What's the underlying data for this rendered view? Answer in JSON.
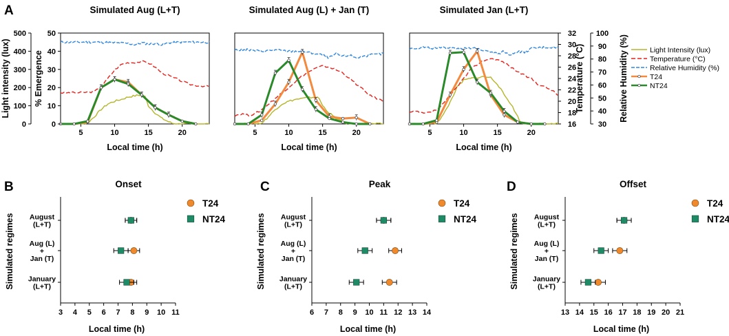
{
  "panel_letters": [
    "A",
    "B",
    "C",
    "D"
  ],
  "colors": {
    "light": "#b5b52a",
    "temperature": "#e8201a",
    "humidity": "#2e86e0",
    "t24": "#f28a40",
    "nt24": "#2a8a2a",
    "t24_marker": "#f0892c",
    "nt24_marker": "#1f8a66"
  },
  "legend_A": [
    "Light Intensity (lux)",
    "Temperature (°C)",
    "Relative Humidity (%)",
    "T24",
    "NT24"
  ],
  "legend_BCD": [
    "T24",
    "NT24"
  ],
  "chart_data": [
    {
      "type": "line",
      "title": "Simulated Aug (L+T)",
      "xlabel": "Local time (h)",
      "ylabel": "Light intensity (lux)",
      "ylabel2": "% Emergence",
      "xlim": [
        2,
        24
      ],
      "xticks": [
        5,
        10,
        15,
        20
      ],
      "ylim_light": [
        0,
        500
      ],
      "yticks_light": [
        0,
        100,
        200,
        300,
        400,
        500
      ],
      "ylim_emergence": [
        0,
        50
      ],
      "yticks_emergence": [
        0,
        10,
        20,
        30,
        40,
        50
      ],
      "series": [
        {
          "name": "Light Intensity (lux)",
          "axis": "light",
          "x": [
            2,
            5,
            6,
            7,
            8,
            9,
            10,
            11,
            12,
            13,
            14,
            14.5,
            15,
            16,
            17,
            18,
            18.5,
            19,
            24
          ],
          "y": [
            0,
            0,
            5,
            40,
            80,
            110,
            125,
            135,
            148,
            155,
            160,
            150,
            100,
            60,
            30,
            12,
            4,
            0,
            0
          ]
        },
        {
          "name": "Temperature (°C)",
          "axis": "temperature",
          "x": [
            2,
            5,
            7,
            8,
            9,
            10,
            11,
            12,
            13,
            14,
            15,
            16,
            17,
            18,
            19,
            20,
            21,
            22,
            24
          ],
          "y": [
            21.5,
            21.5,
            21.7,
            22.5,
            24,
            25.5,
            26.5,
            26.8,
            26.8,
            27,
            26.8,
            26,
            25,
            24.5,
            24,
            23.5,
            23,
            22.8,
            22.6
          ]
        },
        {
          "name": "Relative Humidity (%)",
          "axis": "humidity",
          "x": [
            2,
            6,
            8,
            10,
            12,
            13,
            14,
            15,
            16,
            17,
            18,
            20,
            22,
            24
          ],
          "y": [
            93,
            93,
            93,
            92.5,
            92,
            91,
            92.5,
            91.5,
            92,
            91,
            92.5,
            93,
            93,
            93
          ]
        },
        {
          "name": "T24",
          "axis": "emergence",
          "x": [
            2,
            4,
            6,
            8,
            10,
            12,
            14,
            16,
            18,
            20,
            22
          ],
          "y": [
            0,
            0,
            1,
            20,
            24.5,
            23,
            16,
            9,
            5,
            1.5,
            0
          ]
        },
        {
          "name": "NT24",
          "axis": "emergence",
          "x": [
            2,
            4,
            6,
            8,
            10,
            12,
            14,
            16,
            18,
            20,
            22
          ],
          "y": [
            0,
            0,
            1.5,
            20,
            24.5,
            22,
            16,
            9,
            5,
            1.5,
            0
          ]
        }
      ]
    },
    {
      "type": "line",
      "title": "Simulated Aug (L) + Jan (T)",
      "xlabel": "Local time (h)",
      "xlim": [
        2,
        24
      ],
      "xticks": [
        5,
        10,
        15,
        20
      ],
      "series": [
        {
          "name": "Light Intensity (lux)",
          "axis": "light",
          "x": [
            2,
            5,
            6,
            7,
            8,
            9,
            10,
            11,
            12,
            13,
            14,
            14.5,
            15,
            16,
            17,
            18,
            18.5,
            19,
            24
          ],
          "y": [
            0,
            0,
            5,
            40,
            80,
            110,
            125,
            135,
            140,
            145,
            148,
            140,
            100,
            60,
            30,
            12,
            4,
            0,
            0
          ]
        },
        {
          "name": "Temperature (°C)",
          "axis": "temperature",
          "x": [
            2,
            3,
            4,
            5,
            6,
            7,
            8,
            9,
            10,
            11,
            12,
            13,
            14,
            15,
            16,
            17,
            18,
            19,
            20,
            21,
            22,
            23,
            24
          ],
          "y": [
            17.5,
            17.8,
            17.5,
            17.8,
            18.5,
            19.5,
            20.5,
            21.5,
            22.5,
            23.5,
            24.5,
            25.2,
            25.8,
            26.2,
            26,
            25.5,
            25,
            24,
            23,
            22,
            21,
            20.5,
            20
          ]
        },
        {
          "name": "Relative Humidity (%)",
          "axis": "humidity",
          "x": [
            2,
            4,
            6,
            8,
            10,
            12,
            14,
            15,
            16,
            17,
            18,
            19,
            20,
            22,
            24
          ],
          "y": [
            87,
            87,
            86,
            87,
            86,
            86,
            84,
            83,
            81,
            84,
            82,
            83,
            81,
            83,
            84
          ]
        },
        {
          "name": "T24",
          "axis": "emergence",
          "x": [
            2,
            4,
            6,
            8,
            10,
            12,
            14,
            16,
            18,
            20,
            22
          ],
          "y": [
            0,
            0,
            2,
            11,
            23,
            39.5,
            13,
            4,
            3,
            3.5,
            0
          ]
        },
        {
          "name": "NT24",
          "axis": "emergence",
          "x": [
            2,
            4,
            6,
            8,
            10,
            12,
            14,
            16,
            18,
            20,
            22
          ],
          "y": [
            0,
            0,
            5,
            28,
            35,
            19,
            8,
            3,
            1,
            0,
            0
          ]
        }
      ]
    },
    {
      "type": "line",
      "title": "Simulated Jan (L+T)",
      "xlabel": "Local time (h)",
      "ylabel": "Temperature (°C)",
      "ylabel2": "Relative Humidity (%)",
      "xlim": [
        2,
        24
      ],
      "xticks": [
        5,
        10,
        15,
        20
      ],
      "ylim_temperature": [
        16,
        32
      ],
      "yticks_temperature": [
        16,
        18,
        20,
        22,
        24,
        26,
        28,
        30,
        32
      ],
      "ylim_humidity": [
        30,
        100
      ],
      "yticks_humidity": [
        30,
        40,
        50,
        60,
        70,
        80,
        90,
        100
      ],
      "series": [
        {
          "name": "Light Intensity (lux)",
          "axis": "light",
          "x": [
            2,
            5,
            6,
            7,
            8,
            9,
            10,
            11,
            12,
            13,
            14,
            15,
            16,
            17,
            18,
            18.5,
            19,
            24
          ],
          "y": [
            0,
            0,
            5,
            50,
            120,
            200,
            240,
            250,
            255,
            260,
            255,
            220,
            160,
            110,
            40,
            5,
            0,
            0
          ]
        },
        {
          "name": "Temperature (°C)",
          "axis": "temperature",
          "x": [
            2,
            3,
            4,
            5,
            6,
            7,
            8,
            9,
            10,
            11,
            12,
            13,
            14,
            15,
            16,
            17,
            18,
            19,
            20,
            21,
            22,
            23,
            24
          ],
          "y": [
            18,
            18.2,
            17.8,
            18,
            18.5,
            19.5,
            21,
            22.5,
            24,
            25.5,
            26.5,
            27.2,
            27.5,
            27.3,
            26.8,
            26,
            25.2,
            24.5,
            24,
            23,
            22.5,
            22,
            21
          ]
        },
        {
          "name": "Relative Humidity (%)",
          "axis": "humidity",
          "x": [
            2,
            4,
            6,
            8,
            10,
            12,
            14,
            15,
            16,
            17,
            18,
            19,
            20,
            22,
            24
          ],
          "y": [
            88,
            89,
            88,
            89,
            88,
            88,
            86,
            84,
            86,
            83,
            86,
            85,
            88,
            89,
            89
          ]
        },
        {
          "name": "T24",
          "axis": "emergence",
          "x": [
            2,
            4,
            6,
            8,
            10,
            12,
            14,
            16,
            18,
            20,
            22
          ],
          "y": [
            0,
            0,
            1,
            16,
            30,
            40,
            16,
            5,
            1,
            0,
            0
          ]
        },
        {
          "name": "NT24",
          "axis": "emergence",
          "x": [
            2,
            4,
            6,
            8,
            10,
            12,
            14,
            16,
            18,
            20,
            22
          ],
          "y": [
            0,
            0,
            2,
            39,
            39.5,
            23,
            17,
            7,
            1,
            0,
            0
          ]
        }
      ]
    },
    {
      "type": "scatter",
      "title": "Onset",
      "xlabel": "Local time (h)",
      "ylabel": "Simulated regimes",
      "xlim": [
        3,
        11
      ],
      "xticks": [
        3,
        4,
        5,
        6,
        7,
        8,
        9,
        10,
        11
      ],
      "categories": [
        [
          "August",
          "(L+T)"
        ],
        [
          "Aug (L)",
          "+",
          "Jan (T)"
        ],
        [
          "January",
          "(L+T)"
        ]
      ],
      "series": [
        {
          "name": "T24",
          "values": [
            7.9,
            8.1,
            7.9
          ],
          "errors": [
            0.4,
            0.4,
            0.4
          ]
        },
        {
          "name": "NT24",
          "values": [
            7.9,
            7.2,
            7.6
          ],
          "errors": [
            0.4,
            0.5,
            0.5
          ]
        }
      ]
    },
    {
      "type": "scatter",
      "title": "Peak",
      "xlabel": "Local time (h)",
      "ylabel": "Simulated regimes",
      "xlim": [
        6,
        14
      ],
      "xticks": [
        6,
        7,
        8,
        9,
        10,
        11,
        12,
        13,
        14
      ],
      "categories": [
        [
          "August",
          "(L+T)"
        ],
        [
          "Aug (L)",
          "+",
          "Jan (T)"
        ],
        [
          "January",
          "(L+T)"
        ]
      ],
      "series": [
        {
          "name": "T24",
          "values": [
            11.0,
            11.8,
            11.4
          ],
          "errors": [
            0.5,
            0.45,
            0.5
          ]
        },
        {
          "name": "NT24",
          "values": [
            11.0,
            9.7,
            9.1
          ],
          "errors": [
            0.5,
            0.5,
            0.5
          ]
        }
      ]
    },
    {
      "type": "scatter",
      "title": "Offset",
      "xlabel": "Local time (h)",
      "ylabel": "Simulated regimes",
      "xlim": [
        13,
        21
      ],
      "xticks": [
        13,
        14,
        15,
        16,
        17,
        18,
        19,
        20,
        21
      ],
      "categories": [
        [
          "August",
          "(L+T)"
        ],
        [
          "Aug (L)",
          "+",
          "Jan (T)"
        ],
        [
          "January",
          "(L+T)"
        ]
      ],
      "series": [
        {
          "name": "T24",
          "values": [
            17.1,
            16.8,
            15.3
          ],
          "errors": [
            0.5,
            0.5,
            0.5
          ]
        },
        {
          "name": "NT24",
          "values": [
            17.1,
            15.5,
            14.6
          ],
          "errors": [
            0.5,
            0.5,
            0.5
          ]
        }
      ]
    }
  ]
}
